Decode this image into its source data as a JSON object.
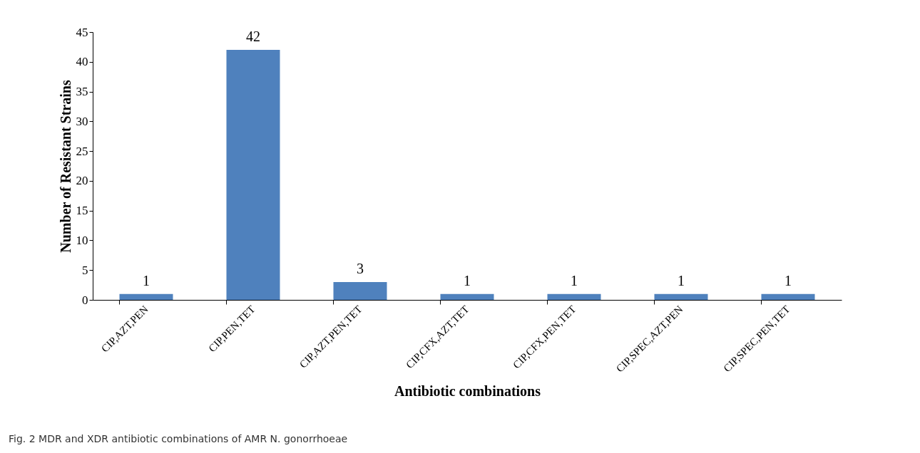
{
  "chart_data": {
    "type": "bar",
    "xlabel": "Antibiotic combinations",
    "ylabel": "Number of Resistant Strains",
    "categories": [
      "CIP,AZT,PEN",
      "CIP,PEN,TET",
      "CIP,AZT,PEN,TET",
      "CIP,CFX,AZT,TET",
      "CIP,CFX,PEN,TET",
      "CIP,SPEC,AZT,PEN",
      "CIP,SPEC,PEN,TET"
    ],
    "values": [
      1,
      42,
      3,
      1,
      1,
      1,
      1
    ],
    "color": "#4f81bd",
    "ylim": [
      0,
      45
    ],
    "yticks": [
      0,
      5,
      10,
      15,
      20,
      25,
      30,
      35,
      40,
      45
    ],
    "grid": false,
    "data_labels": true,
    "annotations": [
      "Fig. 2 MDR and XDR antibiotic combinations of AMR N. gonorrhoeae"
    ]
  }
}
